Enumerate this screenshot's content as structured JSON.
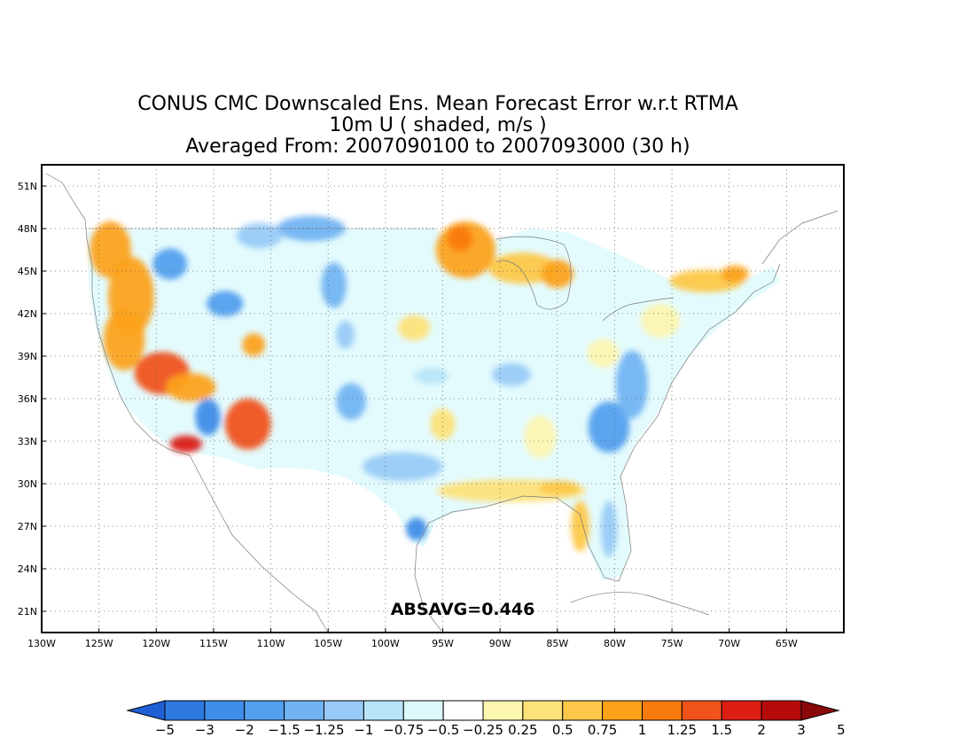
{
  "title": {
    "line1": "CONUS CMC Downscaled Ens. Mean Forecast Error w.r.t RTMA",
    "line2": "10m U ( shaded, m/s )",
    "line3": "Averaged From: 2007090100 to 2007093000 (30 h)"
  },
  "map": {
    "lon_range": [
      -130,
      -60
    ],
    "lat_range": [
      19.5,
      52.5
    ],
    "lon_ticks": [
      -130,
      -125,
      -120,
      -115,
      -110,
      -105,
      -100,
      -95,
      -90,
      -85,
      -80,
      -75,
      -70,
      -65
    ],
    "lat_ticks": [
      21,
      24,
      27,
      30,
      33,
      36,
      39,
      42,
      45,
      48,
      51
    ],
    "lon_tick_labels": [
      "130W",
      "125W",
      "120W",
      "115W",
      "110W",
      "105W",
      "100W",
      "95W",
      "90W",
      "85W",
      "80W",
      "75W",
      "70W",
      "65W"
    ],
    "lat_tick_labels": [
      "21N",
      "24N",
      "27N",
      "30N",
      "33N",
      "36N",
      "39N",
      "42N",
      "45N",
      "48N",
      "51N"
    ],
    "grid": "dotted",
    "statistic": "ABSAVG=0.446"
  },
  "colorbar": {
    "labels": [
      "−5",
      "−3",
      "−2",
      "−1.5",
      "−1.25",
      "−1",
      "−0.75",
      "−0.5",
      "−0.25",
      "0.25",
      "0.5",
      "0.75",
      "1",
      "1.25",
      "1.5",
      "2",
      "3",
      "5"
    ],
    "colors": [
      "#1e5fd6",
      "#2e7ae0",
      "#3e8de8",
      "#52a0ee",
      "#72b4f2",
      "#98cbf7",
      "#b8e6f8",
      "#dcfafc",
      "#ffffff",
      "#fdf6b0",
      "#fde27a",
      "#fdc84a",
      "#fca21a",
      "#f97a0e",
      "#f0521a",
      "#dc1e14",
      "#b40a0a",
      "#8a0808"
    ]
  },
  "fields": [
    {
      "lon": -124.0,
      "lat": 46.5,
      "rx": 1.8,
      "ry": 2.0,
      "color": "#fca21a"
    },
    {
      "lon": -122.2,
      "lat": 43.2,
      "rx": 2.0,
      "ry": 2.8,
      "color": "#fca21a"
    },
    {
      "lon": -122.8,
      "lat": 40.2,
      "rx": 1.8,
      "ry": 2.2,
      "color": "#fca21a"
    },
    {
      "lon": -119.5,
      "lat": 37.8,
      "rx": 2.4,
      "ry": 1.5,
      "color": "#f0521a"
    },
    {
      "lon": -117.0,
      "lat": 36.8,
      "rx": 2.2,
      "ry": 1.0,
      "color": "#fca21a"
    },
    {
      "lon": -112.0,
      "lat": 34.2,
      "rx": 2.0,
      "ry": 1.8,
      "color": "#f0521a"
    },
    {
      "lon": -117.4,
      "lat": 32.8,
      "rx": 1.4,
      "ry": 0.6,
      "color": "#dc1e14"
    },
    {
      "lon": -111.5,
      "lat": 39.8,
      "rx": 1.0,
      "ry": 0.8,
      "color": "#fca21a"
    },
    {
      "lon": -115.5,
      "lat": 34.7,
      "rx": 1.1,
      "ry": 1.3,
      "color": "#3e8de8"
    },
    {
      "lon": -118.8,
      "lat": 45.5,
      "rx": 1.5,
      "ry": 1.1,
      "color": "#52a0ee"
    },
    {
      "lon": -114.0,
      "lat": 42.7,
      "rx": 1.6,
      "ry": 0.9,
      "color": "#52a0ee"
    },
    {
      "lon": -106.5,
      "lat": 48.0,
      "rx": 3.0,
      "ry": 0.9,
      "color": "#72b4f2"
    },
    {
      "lon": -111.0,
      "lat": 47.5,
      "rx": 2.0,
      "ry": 0.9,
      "color": "#98cbf7"
    },
    {
      "lon": -104.5,
      "lat": 44.0,
      "rx": 1.1,
      "ry": 1.6,
      "color": "#72b4f2"
    },
    {
      "lon": -103.0,
      "lat": 35.8,
      "rx": 1.3,
      "ry": 1.3,
      "color": "#72b4f2"
    },
    {
      "lon": -103.5,
      "lat": 40.5,
      "rx": 0.8,
      "ry": 1.0,
      "color": "#98cbf7"
    },
    {
      "lon": -98.5,
      "lat": 31.2,
      "rx": 3.5,
      "ry": 1.0,
      "color": "#98cbf7"
    },
    {
      "lon": -97.3,
      "lat": 26.8,
      "rx": 0.9,
      "ry": 0.8,
      "color": "#3e8de8"
    },
    {
      "lon": -93.0,
      "lat": 46.5,
      "rx": 2.6,
      "ry": 2.0,
      "color": "#fca21a"
    },
    {
      "lon": -93.5,
      "lat": 47.3,
      "rx": 1.1,
      "ry": 0.9,
      "color": "#f97a0e"
    },
    {
      "lon": -88.0,
      "lat": 45.2,
      "rx": 3.0,
      "ry": 1.1,
      "color": "#fdc84a"
    },
    {
      "lon": -85.0,
      "lat": 44.8,
      "rx": 1.4,
      "ry": 1.0,
      "color": "#fca21a"
    },
    {
      "lon": -97.5,
      "lat": 41.0,
      "rx": 1.4,
      "ry": 0.9,
      "color": "#fde27a"
    },
    {
      "lon": -95.0,
      "lat": 34.2,
      "rx": 1.1,
      "ry": 1.1,
      "color": "#fde27a"
    },
    {
      "lon": -89.0,
      "lat": 37.7,
      "rx": 1.7,
      "ry": 0.8,
      "color": "#98cbf7"
    },
    {
      "lon": -96.0,
      "lat": 37.6,
      "rx": 1.5,
      "ry": 0.6,
      "color": "#b8e6f8"
    },
    {
      "lon": -89.0,
      "lat": 29.5,
      "rx": 6.5,
      "ry": 0.8,
      "color": "#fde27a"
    },
    {
      "lon": -84.8,
      "lat": 29.7,
      "rx": 1.8,
      "ry": 0.5,
      "color": "#fdc84a"
    },
    {
      "lon": -83.0,
      "lat": 27.0,
      "rx": 0.8,
      "ry": 1.8,
      "color": "#fdc84a"
    },
    {
      "lon": -80.5,
      "lat": 26.8,
      "rx": 0.7,
      "ry": 2.0,
      "color": "#98cbf7"
    },
    {
      "lon": -80.5,
      "lat": 34.0,
      "rx": 1.8,
      "ry": 1.8,
      "color": "#52a0ee"
    },
    {
      "lon": -78.5,
      "lat": 37.0,
      "rx": 1.4,
      "ry": 2.4,
      "color": "#72b4f2"
    },
    {
      "lon": -86.5,
      "lat": 33.3,
      "rx": 1.4,
      "ry": 1.5,
      "color": "#fdf6b0"
    },
    {
      "lon": -72.0,
      "lat": 44.3,
      "rx": 3.2,
      "ry": 0.8,
      "color": "#fdc84a"
    },
    {
      "lon": -69.5,
      "lat": 44.8,
      "rx": 1.2,
      "ry": 0.6,
      "color": "#fca21a"
    },
    {
      "lon": -76.0,
      "lat": 41.5,
      "rx": 1.7,
      "ry": 1.2,
      "color": "#fdf6b0"
    },
    {
      "lon": -81.0,
      "lat": 39.2,
      "rx": 1.4,
      "ry": 1.0,
      "color": "#fdf6b0"
    }
  ]
}
